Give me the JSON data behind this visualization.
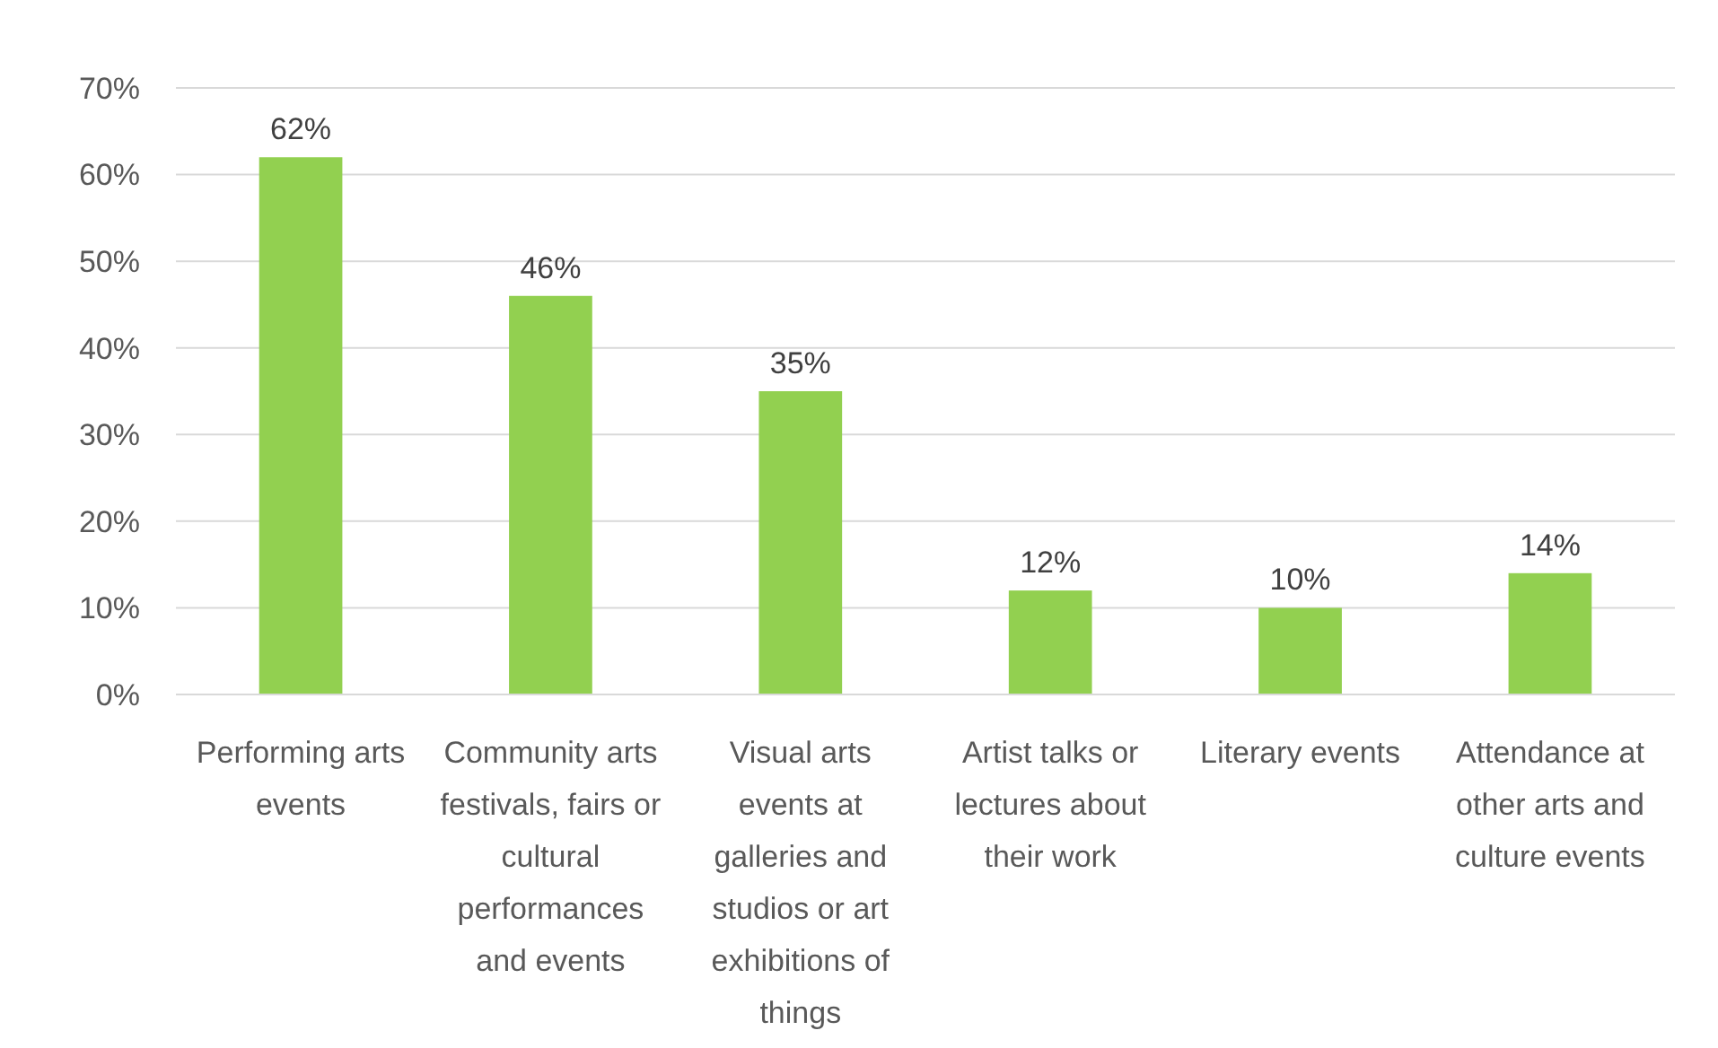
{
  "chart_data": {
    "type": "bar",
    "categories": [
      "Performing arts events",
      "Community arts festivals, fairs or cultural performances and events",
      "Visual arts events at galleries and studios or art exhibitions of things",
      "Artist talks or lectures about their work",
      "Literary events",
      "Attendance at other arts and culture events"
    ],
    "values": [
      62,
      46,
      35,
      12,
      10,
      14
    ],
    "value_labels": [
      "62%",
      "46%",
      "35%",
      "12%",
      "10%",
      "14%"
    ],
    "color": "#92d050",
    "ylim": [
      0,
      70
    ],
    "yticks": [
      {
        "value": 0,
        "label": "0%"
      },
      {
        "value": 10,
        "label": "10%"
      },
      {
        "value": 20,
        "label": "20%"
      },
      {
        "value": 30,
        "label": "30%"
      },
      {
        "value": 40,
        "label": "40%"
      },
      {
        "value": 50,
        "label": "50%"
      },
      {
        "value": 60,
        "label": "60%"
      },
      {
        "value": 70,
        "label": "70%"
      }
    ],
    "grid": "y"
  }
}
